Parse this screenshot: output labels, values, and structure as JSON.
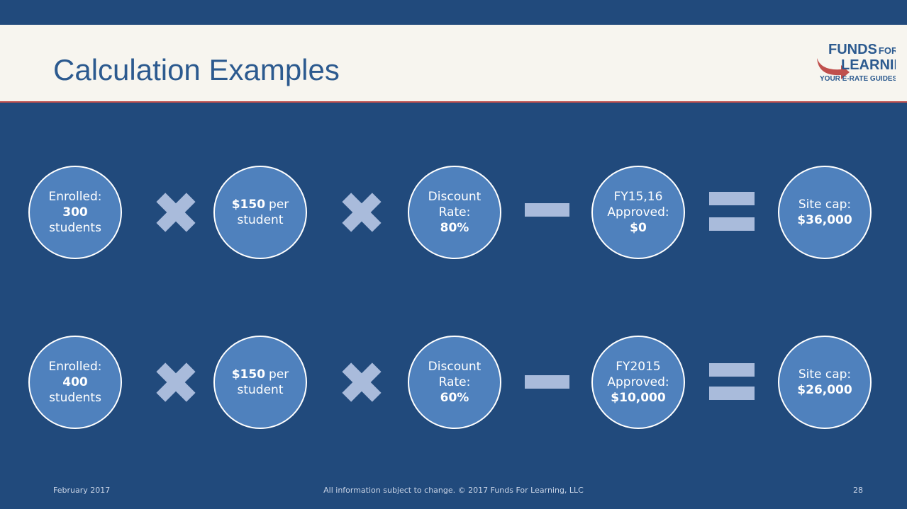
{
  "header": {
    "title": "Calculation Examples",
    "logo": {
      "line1": "FUNDS",
      "line1b": "FOR",
      "line2": "LEARNING",
      "tagline": "YOUR E-RATE GUIDES"
    }
  },
  "rows": [
    {
      "circles": [
        {
          "lines": [
            [
              {
                "text": "Enrolled:",
                "bold": false
              }
            ],
            [
              {
                "text": "300",
                "bold": true
              }
            ],
            [
              {
                "text": "students",
                "bold": false
              }
            ]
          ]
        },
        {
          "lines": [
            [
              {
                "text": "$150",
                "bold": true
              },
              {
                "text": "per",
                "bold": false
              }
            ],
            [
              {
                "text": "student",
                "bold": false
              }
            ]
          ]
        },
        {
          "lines": [
            [
              {
                "text": "Discount",
                "bold": false
              }
            ],
            [
              {
                "text": "Rate:",
                "bold": false
              }
            ],
            [
              {
                "text": "80%",
                "bold": true
              }
            ]
          ]
        },
        {
          "lines": [
            [
              {
                "text": "FY15,16",
                "bold": false
              }
            ],
            [
              {
                "text": "Approved:",
                "bold": false
              }
            ],
            [
              {
                "text": "$0",
                "bold": true
              }
            ]
          ]
        },
        {
          "lines": [
            [
              {
                "text": "Site cap:",
                "bold": false
              }
            ],
            [
              {
                "text": "$36,000",
                "bold": true
              }
            ]
          ]
        }
      ]
    },
    {
      "circles": [
        {
          "lines": [
            [
              {
                "text": "Enrolled:",
                "bold": false
              }
            ],
            [
              {
                "text": "400",
                "bold": true
              }
            ],
            [
              {
                "text": "students",
                "bold": false
              }
            ]
          ]
        },
        {
          "lines": [
            [
              {
                "text": "$150",
                "bold": true
              },
              {
                "text": "per",
                "bold": false
              }
            ],
            [
              {
                "text": "student",
                "bold": false
              }
            ]
          ]
        },
        {
          "lines": [
            [
              {
                "text": "Discount",
                "bold": false
              }
            ],
            [
              {
                "text": "Rate:",
                "bold": false
              }
            ],
            [
              {
                "text": "60%",
                "bold": true
              }
            ]
          ]
        },
        {
          "lines": [
            [
              {
                "text": "FY2015",
                "bold": false
              }
            ],
            [
              {
                "text": "Approved:",
                "bold": false
              }
            ],
            [
              {
                "text": "$10,000",
                "bold": true
              }
            ]
          ]
        },
        {
          "lines": [
            [
              {
                "text": "Site cap:",
                "bold": false
              }
            ],
            [
              {
                "text": "$26,000",
                "bold": true
              }
            ]
          ]
        }
      ]
    }
  ],
  "footer": {
    "date": "February 2017",
    "notice": "All information subject to change. © 2017 Funds For Learning, LLC",
    "page": "28"
  }
}
